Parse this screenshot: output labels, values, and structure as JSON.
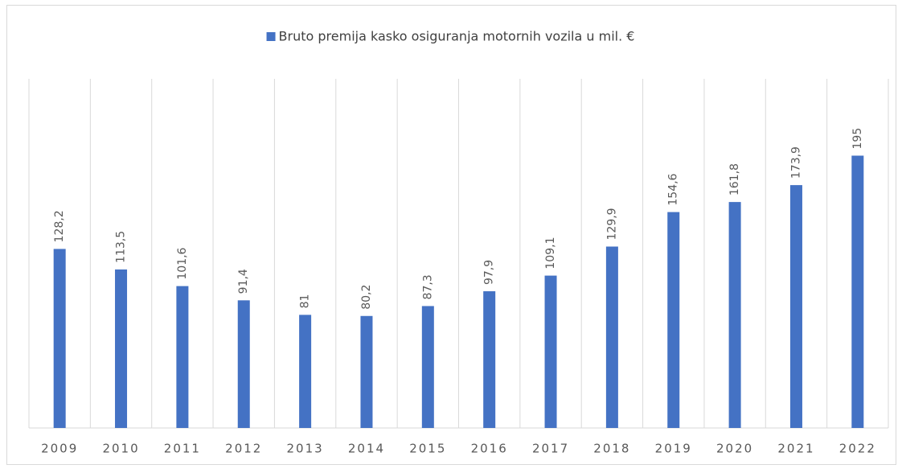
{
  "chart_data": {
    "type": "bar",
    "series": [
      {
        "name": "Bruto premija kasko osiguranja motornih vozila u mil. €",
        "color": "#4472c4",
        "values": [
          128.2,
          113.5,
          101.6,
          91.4,
          81,
          80.2,
          87.3,
          97.9,
          109.1,
          129.9,
          154.6,
          161.8,
          173.9,
          195
        ],
        "value_labels": [
          "128,2",
          "113,5",
          "101,6",
          "91,4",
          "81",
          "80,2",
          "87,3",
          "97,9",
          "109,1",
          "129,9",
          "154,6",
          "161,8",
          "173,9",
          "195"
        ]
      }
    ],
    "categories": [
      "2009",
      "2010",
      "2011",
      "2012",
      "2013",
      "2014",
      "2015",
      "2016",
      "2017",
      "2018",
      "2019",
      "2020",
      "2021",
      "2022"
    ],
    "ylim": [
      0,
      250
    ],
    "grid": true,
    "legend": "top"
  }
}
